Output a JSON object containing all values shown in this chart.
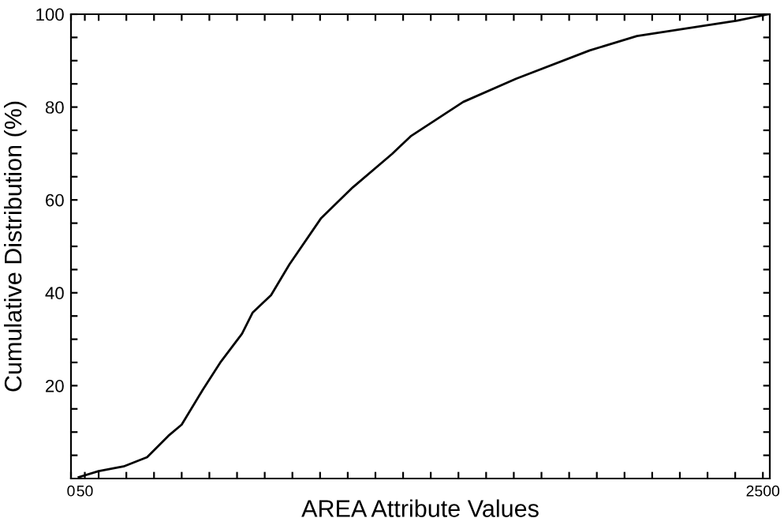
{
  "chart_data": {
    "type": "line",
    "xlabel": "AREA Attribute Values",
    "ylabel": "Cumulative Distribution (%)",
    "xlim": [
      0,
      2525
    ],
    "ylim": [
      0,
      100
    ],
    "xticks": [
      {
        "value": 0,
        "label": "0"
      },
      50,
      {
        "value": 100,
        "label": null
      },
      {
        "value": 200,
        "label": null
      },
      {
        "value": 300,
        "label": null
      },
      {
        "value": 400,
        "label": null
      },
      {
        "value": 500,
        "label": null
      },
      {
        "value": 600,
        "label": null
      },
      {
        "value": 700,
        "label": null
      },
      {
        "value": 800,
        "label": null
      },
      {
        "value": 900,
        "label": null
      },
      {
        "value": 1000,
        "label": null
      },
      {
        "value": 1100,
        "label": null
      },
      {
        "value": 1200,
        "label": null
      },
      {
        "value": 1300,
        "label": null
      },
      {
        "value": 1400,
        "label": null
      },
      {
        "value": 1500,
        "label": null
      },
      {
        "value": 1600,
        "label": null
      },
      {
        "value": 1700,
        "label": null
      },
      {
        "value": 1800,
        "label": null
      },
      {
        "value": 1900,
        "label": null
      },
      {
        "value": 2000,
        "label": null
      },
      {
        "value": 2100,
        "label": null
      },
      {
        "value": 2200,
        "label": null
      },
      {
        "value": 2300,
        "label": null
      },
      {
        "value": 2400,
        "label": null
      },
      2500
    ],
    "yticks": [
      {
        "value": 5,
        "label": null
      },
      {
        "value": 10,
        "label": null
      },
      {
        "value": 15,
        "label": null
      },
      20,
      {
        "value": 25,
        "label": null
      },
      {
        "value": 30,
        "label": null
      },
      {
        "value": 35,
        "label": null
      },
      40,
      {
        "value": 45,
        "label": null
      },
      {
        "value": 50,
        "label": null
      },
      {
        "value": 55,
        "label": null
      },
      60,
      {
        "value": 65,
        "label": null
      },
      {
        "value": 70,
        "label": null
      },
      {
        "value": 75,
        "label": null
      },
      80,
      {
        "value": 85,
        "label": null
      },
      {
        "value": 90,
        "label": null
      },
      {
        "value": 95,
        "label": null
      },
      100
    ],
    "grid": false,
    "legend": false,
    "marker": "none",
    "line_style": "solid",
    "series": [
      {
        "color": "#000000",
        "x": [
          28,
          100,
          190,
          275,
          352,
          400,
          476,
          542,
          618,
          656,
          723,
          789,
          904,
          1018,
          1160,
          1227,
          1417,
          1608,
          1874,
          2045,
          2407,
          2520
        ],
        "values": [
          0.3,
          1.6,
          2.6,
          4.6,
          9.2,
          11.6,
          19.1,
          25.2,
          31.2,
          35.7,
          39.5,
          46.1,
          56.1,
          62.7,
          69.9,
          73.7,
          81.1,
          86.1,
          92.2,
          95.3,
          98.6,
          100
        ]
      }
    ]
  }
}
